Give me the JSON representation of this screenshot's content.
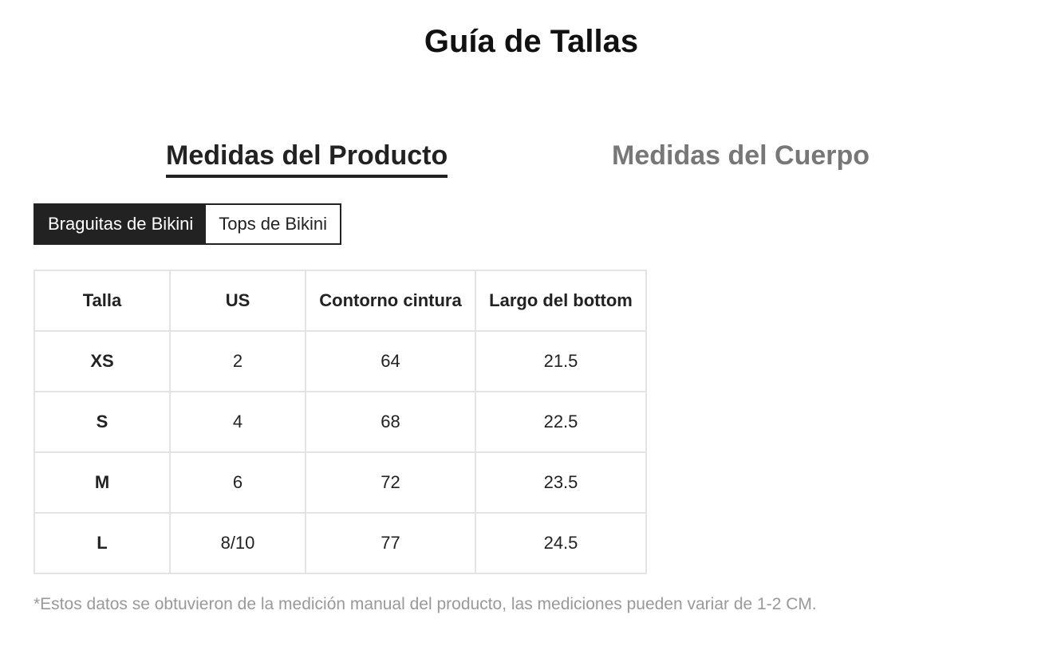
{
  "title": "Guía de Tallas",
  "tabs": [
    {
      "label": "Medidas del Producto",
      "active": true
    },
    {
      "label": "Medidas del Cuerpo",
      "active": false
    }
  ],
  "segments": [
    {
      "label": "Braguitas de Bikini",
      "active": true
    },
    {
      "label": "Tops de Bikini",
      "active": false
    }
  ],
  "table": {
    "headers": [
      "Talla",
      "US",
      "Contorno cintura",
      "Largo del bottom"
    ],
    "rows": [
      [
        "XS",
        "2",
        "64",
        "21.5"
      ],
      [
        "S",
        "4",
        "68",
        "22.5"
      ],
      [
        "M",
        "6",
        "72",
        "23.5"
      ],
      [
        "L",
        "8/10",
        "77",
        "24.5"
      ]
    ]
  },
  "note": "*Estos datos se obtuvieron de la medición manual del producto, las mediciones pueden variar de 1-2 CM."
}
